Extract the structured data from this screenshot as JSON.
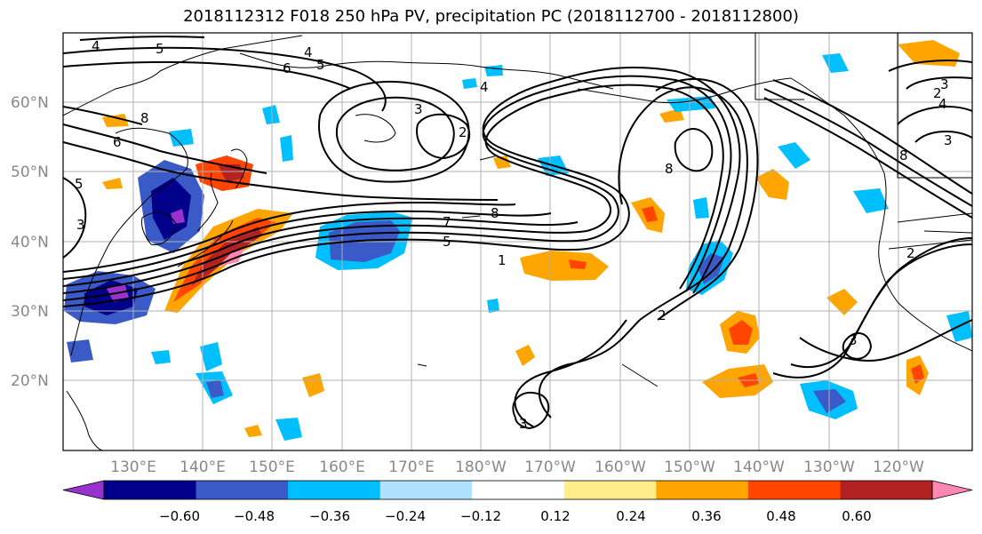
{
  "title": "2018112312 F018 250 hPa PV, precipitation PC (2018112700 - 2018112800)",
  "lat_labels": [
    "60°N",
    "50°N",
    "40°N",
    "30°N",
    "20°N"
  ],
  "lon_labels": [
    "130°E",
    "140°E",
    "150°E",
    "160°E",
    "170°E",
    "180°W",
    "170°W",
    "160°W",
    "150°W",
    "140°W",
    "130°W",
    "120°W"
  ],
  "contour_labels": [
    "4",
    "5",
    "4",
    "5",
    "6",
    "8",
    "6",
    "5",
    "3",
    "4",
    "3",
    "2",
    "8",
    "7",
    "1",
    "5",
    "8",
    "2",
    "3",
    "4",
    "3",
    "8",
    "2",
    "2",
    "3",
    "3"
  ],
  "colorbar": {
    "tick_labels": [
      "−0.60",
      "−0.48",
      "−0.36",
      "−0.24",
      "−0.12",
      "0.12",
      "0.24",
      "0.36",
      "0.48",
      "0.60"
    ],
    "colors": [
      "#9932CC",
      "#00008B",
      "#3A5BC7",
      "#00BFFF",
      "#B0E2FF",
      "#FFFFFF",
      "#FFEC8B",
      "#FFA500",
      "#FF4500",
      "#B22222",
      "#FF88B2"
    ]
  }
}
